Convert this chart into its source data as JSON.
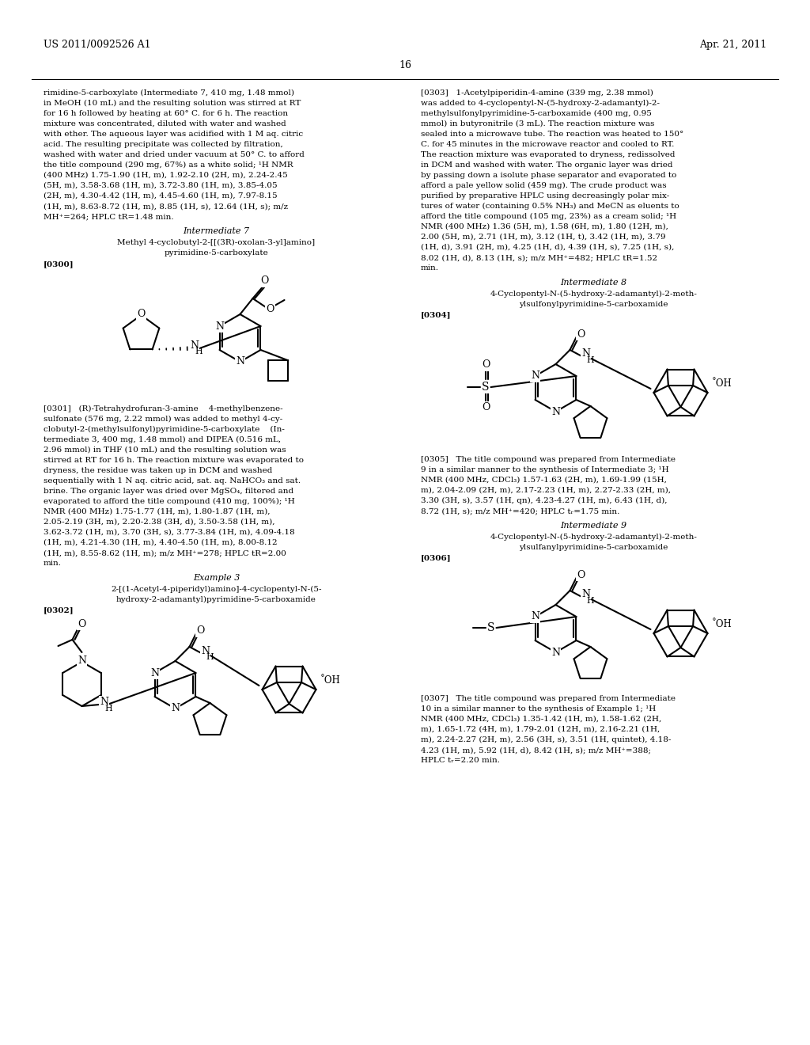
{
  "background_color": "#ffffff",
  "header_left": "US 2011/0092526 A1",
  "header_right": "Apr. 21, 2011",
  "page_number": "16",
  "font_size_body": 7.5,
  "font_size_heading": 8.0,
  "left_col_lines": [
    "rimidine-5-carboxylate (Intermediate 7, 410 mg, 1.48 mmol)",
    "in MeOH (10 mL) and the resulting solution was stirred at RT",
    "for 16 h followed by heating at 60° C. for 6 h. The reaction",
    "mixture was concentrated, diluted with water and washed",
    "with ether. The aqueous layer was acidified with 1 M aq. citric",
    "acid. The resulting precipitate was collected by filtration,",
    "washed with water and dried under vacuum at 50° C. to afford",
    "the title compound (290 mg, 67%) as a white solid; ¹H NMR",
    "(400 MHz) 1.75-1.90 (1H, m), 1.92-2.10 (2H, m), 2.24-2.45",
    "(5H, m), 3.58-3.68 (1H, m), 3.72-3.80 (1H, m), 3.85-4.05",
    "(2H, m), 4.30-4.42 (1H, m), 4.45-4.60 (1H, m), 7.97-8.15",
    "(1H, m), 8.63-8.72 (1H, m), 8.85 (1H, s), 12.64 (1H, s); m/z",
    "MH⁺=264; HPLC tR=1.48 min."
  ],
  "int7_title": "Intermediate 7",
  "int7_name1": "Methyl 4-cyclobutyl-2-[[(3R)-oxolan-3-yl]amino]",
  "int7_name2": "pyrimidine-5-carboxylate",
  "p300": "[0300]",
  "p301_lines": [
    "[0301]   (R)-Tetrahydrofuran-3-amine    4-methylbenzene-",
    "sulfonate (576 mg, 2.22 mmol) was added to methyl 4-cy-",
    "clobutyl-2-(methylsulfonyl)pyrimidine-5-carboxylate    (In-",
    "termediate 3, 400 mg, 1.48 mmol) and DIPEA (0.516 mL,",
    "2.96 mmol) in THF (10 mL) and the resulting solution was",
    "stirred at RT for 16 h. The reaction mixture was evaporated to",
    "dryness, the residue was taken up in DCM and washed",
    "sequentially with 1 N aq. citric acid, sat. aq. NaHCO₃ and sat.",
    "brine. The organic layer was dried over MgSO₄, filtered and",
    "evaporated to afford the title compound (410 mg, 100%); ¹H",
    "NMR (400 MHz) 1.75-1.77 (1H, m), 1.80-1.87 (1H, m),",
    "2.05-2.19 (3H, m), 2.20-2.38 (3H, d), 3.50-3.58 (1H, m),",
    "3.62-3.72 (1H, m), 3.70 (3H, s), 3.77-3.84 (1H, m), 4.09-4.18",
    "(1H, m), 4.21-4.30 (1H, m), 4.40-4.50 (1H, m), 8.00-8.12",
    "(1H, m), 8.55-8.62 (1H, m); m/z MH⁺=278; HPLC tR=2.00",
    "min."
  ],
  "ex3_title": "Example 3",
  "ex3_name1": "2-[(1-Acetyl-4-piperidyl)amino]-4-cyclopentyl-N-(5-",
  "ex3_name2": "hydroxy-2-adamantyl)pyrimidine-5-carboxamide",
  "p302": "[0302]",
  "right_col_lines": [
    "[0303]   1-Acetylpiperidin-4-amine (339 mg, 2.38 mmol)",
    "was added to 4-cyclopentyl-N-(5-hydroxy-2-adamantyl)-2-",
    "methylsulfonylpyrimidine-5-carboxamide (400 mg, 0.95",
    "mmol) in butyronitrile (3 mL). The reaction mixture was",
    "sealed into a microwave tube. The reaction was heated to 150°",
    "C. for 45 minutes in the microwave reactor and cooled to RT.",
    "The reaction mixture was evaporated to dryness, redissolved",
    "in DCM and washed with water. The organic layer was dried",
    "by passing down a isolute phase separator and evaporated to",
    "afford a pale yellow solid (459 mg). The crude product was",
    "purified by preparative HPLC using decreasingly polar mix-",
    "tures of water (containing 0.5% NH₃) and MeCN as eluents to",
    "afford the title compound (105 mg, 23%) as a cream solid; ¹H",
    "NMR (400 MHz) 1.36 (5H, m), 1.58 (6H, m), 1.80 (12H, m),",
    "2.00 (5H, m), 2.71 (1H, m), 3.12 (1H, t), 3.42 (1H, m), 3.79",
    "(1H, d), 3.91 (2H, m), 4.25 (1H, d), 4.39 (1H, s), 7.25 (1H, s),",
    "8.02 (1H, d), 8.13 (1H, s); m/z MH⁺=482; HPLC tR=1.52",
    "min."
  ],
  "int8_title": "Intermediate 8",
  "int8_name1": "4-Cyclopentyl-N-(5-hydroxy-2-adamantyl)-2-meth-",
  "int8_name2": "ylsulfonylpyrimidine-5-carboxamide",
  "p304": "[0304]",
  "p305_lines": [
    "[0305]   The title compound was prepared from Intermediate",
    "9 in a similar manner to the synthesis of Intermediate 3; ¹H",
    "NMR (400 MHz, CDCl₃) 1.57-1.63 (2H, m), 1.69-1.99 (15H,",
    "m), 2.04-2.09 (2H, m), 2.17-2.23 (1H, m), 2.27-2.33 (2H, m),",
    "3.30 (3H, s), 3.57 (1H, qn), 4.23-4.27 (1H, m), 6.43 (1H, d),",
    "8.72 (1H, s); m/z MH⁺=420; HPLC tᵣ=1.75 min."
  ],
  "int9_title": "Intermediate 9",
  "int9_name1": "4-Cyclopentyl-N-(5-hydroxy-2-adamantyl)-2-meth-",
  "int9_name2": "ylsulfanylpyrimidine-5-carboxamide",
  "p306": "[0306]",
  "p307_lines": [
    "[0307]   The title compound was prepared from Intermediate",
    "10 in a similar manner to the synthesis of Example 1; ¹H",
    "NMR (400 MHz, CDCl₃) 1.35-1.42 (1H, m), 1.58-1.62 (2H,",
    "m), 1.65-1.72 (4H, m), 1.79-2.01 (12H, m), 2.16-2.21 (1H,",
    "m), 2.24-2.27 (2H, m), 2.56 (3H, s), 3.51 (1H, quintet), 4.18-",
    "4.23 (1H, m), 5.92 (1H, d), 8.42 (1H, s); m/z MH⁺=388;",
    "HPLC tᵣ=2.20 min."
  ]
}
